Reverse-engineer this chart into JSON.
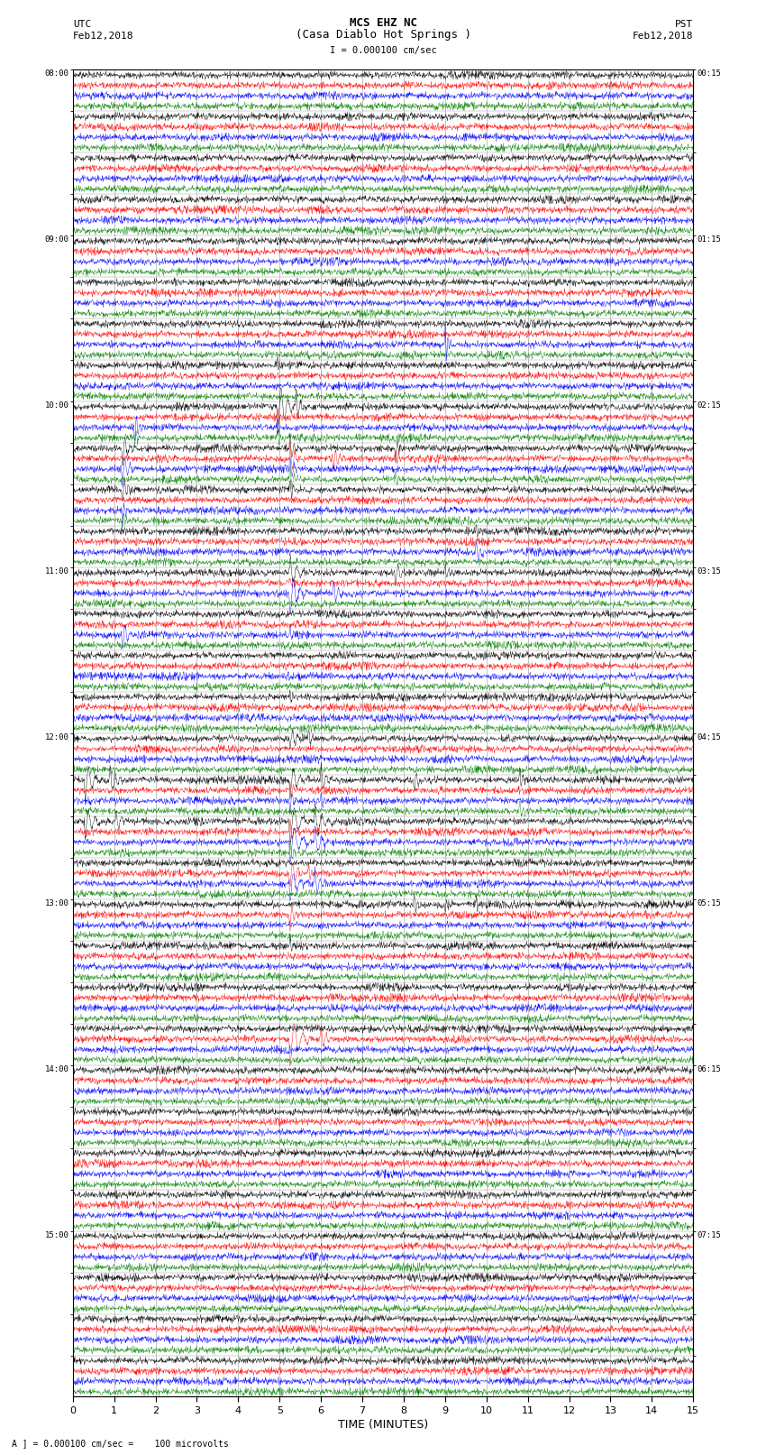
{
  "title_line1": "MCS EHZ NC",
  "title_line2": "(Casa Diablo Hot Springs )",
  "scale_text": "I = 0.000100 cm/sec",
  "utc_label": "UTC",
  "pst_label": "PST",
  "date_left": "Feb12,2018",
  "date_right": "Feb12,2018",
  "xlabel": "TIME (MINUTES)",
  "scale_label": "= 0.000100 cm/sec =    100 microvolts",
  "xlim": [
    0,
    15
  ],
  "xticks": [
    0,
    1,
    2,
    3,
    4,
    5,
    6,
    7,
    8,
    9,
    10,
    11,
    12,
    13,
    14,
    15
  ],
  "colors": [
    "black",
    "red",
    "blue",
    "green"
  ],
  "bg_color": "white",
  "n_time_slots": 32,
  "n_traces_per_slot": 4,
  "samples_per_row": 1800,
  "figwidth": 8.5,
  "figheight": 16.13
}
